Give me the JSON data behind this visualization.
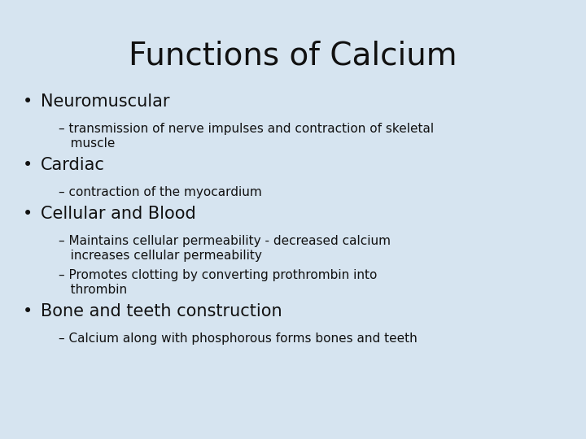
{
  "title": "Functions of Calcium",
  "background_color": "#d6e4f0",
  "text_color": "#111111",
  "title_fontsize": 28,
  "bullet_fontsize": 15,
  "sub_fontsize": 11,
  "content": [
    {
      "type": "bullet",
      "text": "Neuromuscular"
    },
    {
      "type": "sub",
      "lines": [
        "– transmission of nerve impulses and contraction of skeletal",
        "   muscle"
      ]
    },
    {
      "type": "bullet",
      "text": "Cardiac"
    },
    {
      "type": "sub",
      "lines": [
        "– contraction of the myocardium"
      ]
    },
    {
      "type": "bullet",
      "text": "Cellular and Blood"
    },
    {
      "type": "sub",
      "lines": [
        "– Maintains cellular permeability - decreased calcium",
        "   increases cellular permeability"
      ]
    },
    {
      "type": "sub",
      "lines": [
        "– Promotes clotting by converting prothrombin into",
        "   thrombin"
      ]
    },
    {
      "type": "bullet",
      "text": "Bone and teeth construction"
    },
    {
      "type": "sub",
      "lines": [
        "– Calcium along with phosphorous forms bones and teeth"
      ]
    }
  ]
}
